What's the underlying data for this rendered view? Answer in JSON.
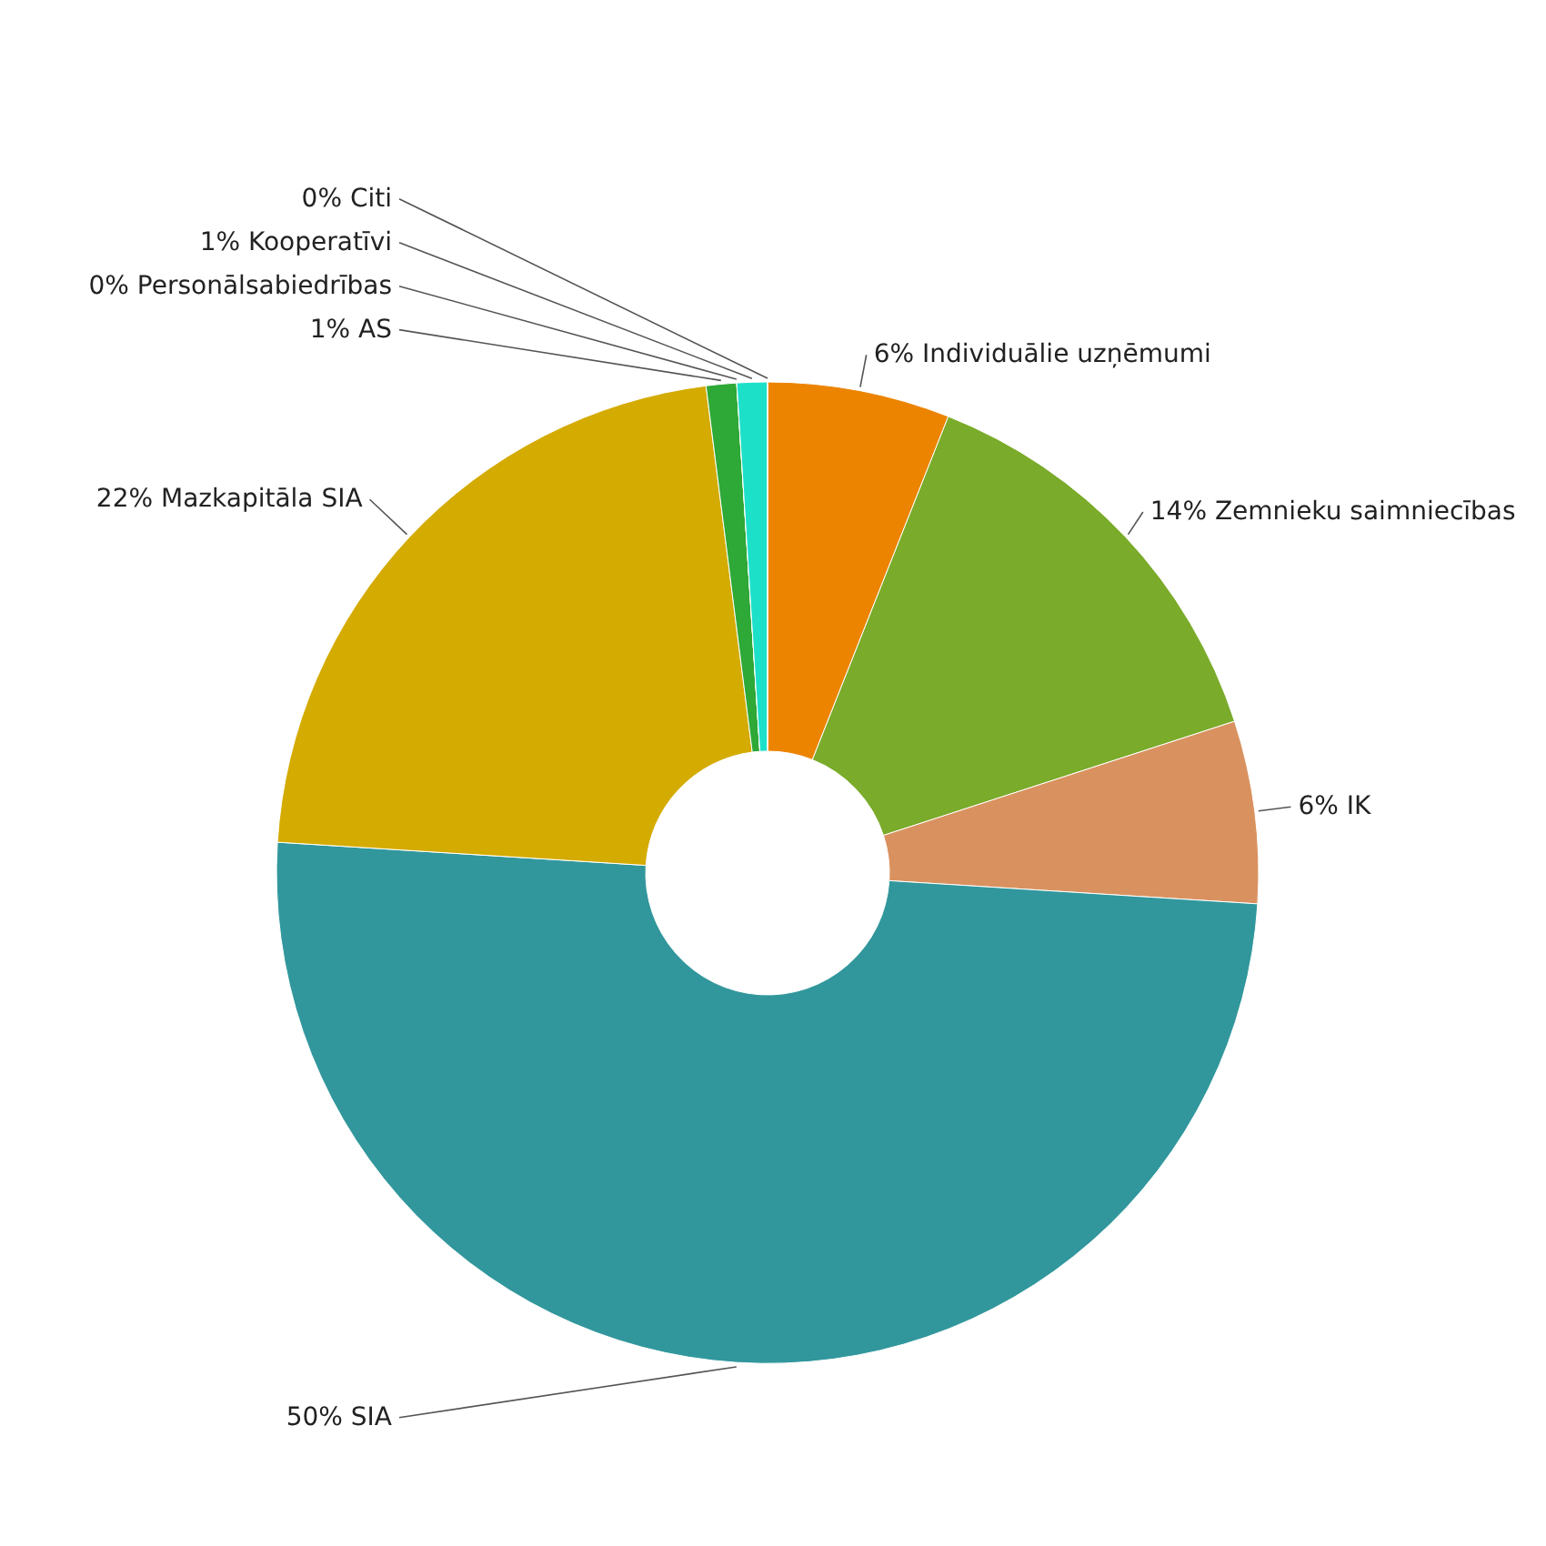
{
  "chart_data": {
    "type": "donut",
    "categories": [
      "Individuālie uzņēmumi",
      "Zemnieku saimniecības",
      "IK",
      "SIA",
      "Mazkapitāla SIA",
      "AS",
      "Personālsabiedrības",
      "Kooperatīvi",
      "Citi"
    ],
    "values": [
      6,
      14,
      6,
      50,
      22,
      1,
      0,
      1,
      0
    ],
    "value_labels": [
      "6%",
      "14%",
      "6%",
      "50%",
      "22%",
      "1%",
      "0%",
      "1%",
      "0%"
    ],
    "colors": [
      "#ec8400",
      "#7aab2a",
      "#d9925f",
      "#31979c",
      "#d4ab00",
      "#2ea836",
      "#7a2a7a",
      "#1de0c8",
      "#f5d400"
    ]
  }
}
